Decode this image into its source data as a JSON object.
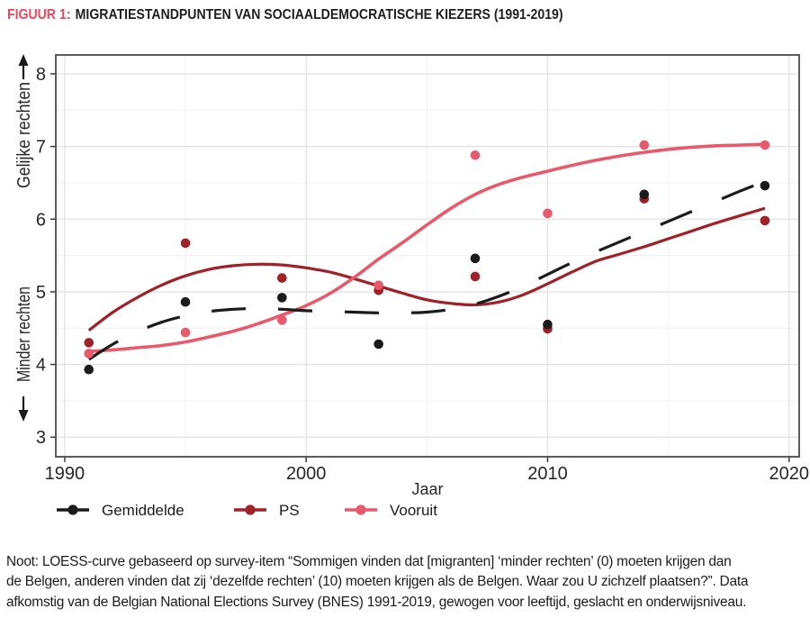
{
  "title": {
    "prefix": "FIGUUR 1:",
    "text": "MIGRATIESTANDPUNTEN VAN SOCIAALDEMOCRATISCHE KIEZERS (1991-2019)"
  },
  "colors": {
    "title_prefix": "#F0455A",
    "gemiddelde": "#1B1B1B",
    "ps": "#A02128",
    "vooruit": "#E85A6B",
    "grid_major": "#E2E2E2",
    "grid_minor": "#F0F0F0",
    "panel_border": "#4A4A4A",
    "tick_label": "#262626"
  },
  "chart_data": {
    "type": "scatter",
    "subtype": "scatter points with LOESS smoothed lines",
    "xlabel": "Jaar",
    "ylabel_top": "Gelijke rechten",
    "ylabel_bottom": "Minder rechten",
    "x_ticks": [
      1990,
      2000,
      2010,
      2020
    ],
    "y_ticks": [
      3,
      4,
      5,
      6,
      7,
      8
    ],
    "xlim": [
      1989.63,
      2020.42
    ],
    "ylim": [
      2.73,
      8.26
    ],
    "grid": "on",
    "legend_position": "bottom",
    "legend": [
      "Gemiddelde",
      "PS",
      "Vooruit"
    ],
    "survey_years": [
      1991,
      1995,
      1999,
      2003,
      2007,
      2010,
      2014,
      2019
    ],
    "loess_x": [
      1991,
      1992,
      1993,
      1994,
      1995,
      1996,
      1997,
      1998,
      1999,
      2000,
      2001,
      2002,
      2003,
      2004,
      2005,
      2006,
      2007,
      2008,
      2009,
      2010,
      2011,
      2012,
      2013,
      2014,
      2015,
      2016,
      2017,
      2018,
      2019
    ],
    "series": [
      {
        "name": "Gemiddelde",
        "color": "#1B1B1B",
        "line_style": "dashed",
        "points_y": [
          3.93,
          4.86,
          4.92,
          4.28,
          5.46,
          4.55,
          6.34,
          6.46
        ],
        "loess_y": [
          4.07,
          4.28,
          4.45,
          4.58,
          4.67,
          4.73,
          4.76,
          4.77,
          4.76,
          4.74,
          4.73,
          4.72,
          4.71,
          4.71,
          4.72,
          4.76,
          4.83,
          4.94,
          5.08,
          5.24,
          5.4,
          5.55,
          5.69,
          5.83,
          5.97,
          6.11,
          6.25,
          6.39,
          6.52
        ]
      },
      {
        "name": "PS",
        "color": "#A02128",
        "line_style": "solid",
        "points_y": [
          4.3,
          5.67,
          5.19,
          5.02,
          5.21,
          4.49,
          6.28,
          5.98
        ],
        "loess_y": [
          4.47,
          4.72,
          4.92,
          5.09,
          5.22,
          5.31,
          5.36,
          5.38,
          5.37,
          5.33,
          5.27,
          5.18,
          5.08,
          4.98,
          4.89,
          4.84,
          4.82,
          4.86,
          4.96,
          5.11,
          5.27,
          5.42,
          5.52,
          5.62,
          5.73,
          5.84,
          5.95,
          6.05,
          6.15
        ]
      },
      {
        "name": "Vooruit",
        "color": "#E85A6B",
        "line_style": "solid",
        "points_y": [
          4.15,
          4.44,
          4.61,
          5.09,
          6.88,
          6.08,
          7.02,
          7.02
        ],
        "loess_y": [
          4.18,
          4.2,
          4.23,
          4.26,
          4.31,
          4.38,
          4.46,
          4.56,
          4.68,
          4.81,
          4.98,
          5.2,
          5.45,
          5.68,
          5.92,
          6.15,
          6.34,
          6.48,
          6.58,
          6.66,
          6.74,
          6.81,
          6.87,
          6.92,
          6.96,
          6.99,
          7.01,
          7.02,
          7.03
        ]
      }
    ]
  },
  "note": {
    "lines": [
      "Noot: LOESS-curve gebaseerd op survey-item “Sommigen vinden dat [migranten] ‘minder rechten’ (0) moeten krijgen dan",
      "de Belgen, anderen vinden dat zij ‘dezelfde rechten’ (10) moeten krijgen als de Belgen. Waar zou U zichzelf plaatsen?”. Data",
      "afkomstig van de Belgian National Elections Survey (BNES) 1991-2019, gewogen voor leeftijd, geslacht en onderwijsniveau."
    ]
  }
}
